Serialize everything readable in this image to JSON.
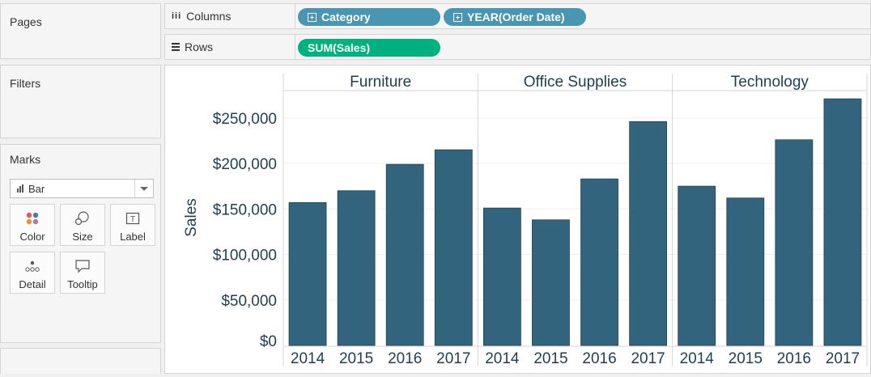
{
  "pages": {
    "title": "Pages"
  },
  "filters": {
    "title": "Filters"
  },
  "marks": {
    "title": "Marks",
    "type": "Bar",
    "buttons": [
      {
        "label": "Color",
        "icon": "color-icon"
      },
      {
        "label": "Size",
        "icon": "size-icon"
      },
      {
        "label": "Label",
        "icon": "label-icon"
      },
      {
        "label": "Detail",
        "icon": "detail-icon"
      },
      {
        "label": "Tooltip",
        "icon": "tooltip-icon"
      }
    ]
  },
  "columns": {
    "label": "Columns",
    "pills": [
      "Category",
      "YEAR(Order Date)"
    ]
  },
  "rows": {
    "label": "Rows",
    "pills": [
      "SUM(Sales)"
    ]
  },
  "colors": {
    "bar": "#33647e",
    "pill_dimension": "#4996b2",
    "pill_measure": "#00b180",
    "text": "#1c3f52"
  },
  "chart_data": {
    "type": "bar",
    "ylabel": "Sales",
    "ylim": [
      0,
      280000
    ],
    "yticks": [
      0,
      50000,
      100000,
      150000,
      200000,
      250000
    ],
    "ytick_labels": [
      "$0",
      "$50,000",
      "$100,000",
      "$150,000",
      "$200,000",
      "$250,000"
    ],
    "panels": [
      {
        "name": "Furniture",
        "categories": [
          "2014",
          "2015",
          "2016",
          "2017"
        ],
        "values": [
          157000,
          170000,
          199000,
          215000
        ]
      },
      {
        "name": "Office Supplies",
        "categories": [
          "2014",
          "2015",
          "2016",
          "2017"
        ],
        "values": [
          151000,
          138000,
          183000,
          246000
        ]
      },
      {
        "name": "Technology",
        "categories": [
          "2014",
          "2015",
          "2016",
          "2017"
        ],
        "values": [
          175000,
          162000,
          226000,
          271000
        ]
      }
    ],
    "grid": true
  }
}
